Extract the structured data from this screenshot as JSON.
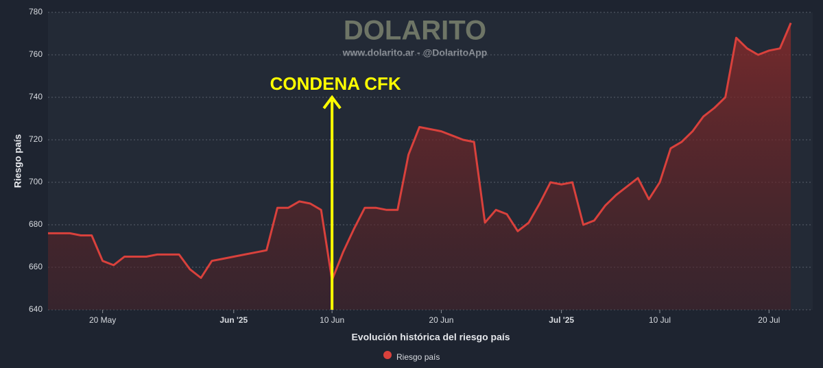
{
  "chart_data": {
    "type": "line",
    "watermark": "DOLARITO",
    "watermark_subtitle": "www.dolarito.ar - @DolaritoApp",
    "x_label": "Evolución histórica del riesgo país",
    "y_label": "Riesgo país",
    "annotations": [
      {
        "text": "CONDENA CFK",
        "x": "2025-06-10",
        "color": "#ffff00"
      }
    ],
    "x": [
      "2025-05-15",
      "2025-05-16",
      "2025-05-17",
      "2025-05-18",
      "2025-05-19",
      "2025-05-20",
      "2025-05-21",
      "2025-05-22",
      "2025-05-23",
      "2025-05-24",
      "2025-05-25",
      "2025-05-26",
      "2025-05-27",
      "2025-05-28",
      "2025-05-29",
      "2025-05-30",
      "2025-05-31",
      "2025-06-01",
      "2025-06-02",
      "2025-06-03",
      "2025-06-04",
      "2025-06-05",
      "2025-06-06",
      "2025-06-07",
      "2025-06-08",
      "2025-06-09",
      "2025-06-10",
      "2025-06-11",
      "2025-06-12",
      "2025-06-13",
      "2025-06-14",
      "2025-06-15",
      "2025-06-16",
      "2025-06-17",
      "2025-06-18",
      "2025-06-19",
      "2025-06-20",
      "2025-06-21",
      "2025-06-22",
      "2025-06-23",
      "2025-06-24",
      "2025-06-25",
      "2025-06-26",
      "2025-06-27",
      "2025-06-28",
      "2025-06-29",
      "2025-06-30",
      "2025-07-01",
      "2025-07-02",
      "2025-07-03",
      "2025-07-04",
      "2025-07-05",
      "2025-07-06",
      "2025-07-07",
      "2025-07-08",
      "2025-07-09",
      "2025-07-10",
      "2025-07-11",
      "2025-07-12",
      "2025-07-13",
      "2025-07-14",
      "2025-07-15",
      "2025-07-16",
      "2025-07-17",
      "2025-07-18",
      "2025-07-19",
      "2025-07-20",
      "2025-07-21",
      "2025-07-22"
    ],
    "series": [
      {
        "name": "Riesgo país",
        "color": "#d9413c",
        "values": [
          676,
          676,
          676,
          675,
          675,
          663,
          661,
          665,
          665,
          665,
          666,
          666,
          666,
          659,
          655,
          663,
          664,
          665,
          666,
          667,
          668,
          688,
          688,
          691,
          690,
          687,
          654,
          667,
          678,
          688,
          688,
          687,
          687,
          713,
          726,
          725,
          724,
          722,
          720,
          719,
          681,
          687,
          685,
          677,
          681,
          690,
          700,
          699,
          700,
          680,
          682,
          689,
          694,
          698,
          702,
          692,
          700,
          716,
          719,
          724,
          731,
          735,
          740,
          768,
          763,
          760,
          762,
          763,
          775
        ]
      }
    ],
    "xlim": [
      "2025-05-15",
      "2025-07-24"
    ],
    "xticks": [
      {
        "value": "2025-05-20",
        "label": "20 May"
      },
      {
        "value": "2025-06-01",
        "label": "Jun '25"
      },
      {
        "value": "2025-06-10",
        "label": "10 Jun"
      },
      {
        "value": "2025-06-20",
        "label": "20 Jun"
      },
      {
        "value": "2025-07-01",
        "label": "Jul '25"
      },
      {
        "value": "2025-07-10",
        "label": "10 Jul"
      },
      {
        "value": "2025-07-20",
        "label": "20 Jul"
      }
    ],
    "ylim": [
      640,
      780
    ],
    "yticks": [
      640,
      660,
      680,
      700,
      720,
      740,
      760,
      780
    ],
    "grid": true
  }
}
